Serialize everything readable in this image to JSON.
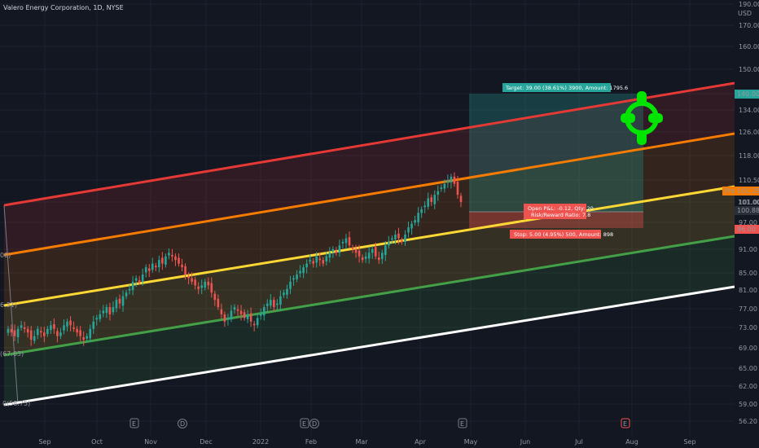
{
  "header": {
    "title": "Valero Energy Corporation, 1D, NYSE"
  },
  "colors": {
    "background": "#131722",
    "up": "#26a69a",
    "down": "#ef5350",
    "channel": [
      "#e53935",
      "#f57c00",
      "#fdd835",
      "#43a047",
      "#ffffff"
    ],
    "target_marker": "#00e400"
  },
  "chart_data": {
    "type": "candlestick",
    "price_scale_unit": "USD",
    "y_ticks": [
      "190.00",
      "170.00",
      "160.00",
      "150.00",
      "140.00",
      "134.00",
      "126.00",
      "118.00",
      "110.50",
      "101.00",
      "97.00",
      "91.00",
      "85.00",
      "81.00",
      "77.00",
      "73.00",
      "69.00",
      "65.00",
      "62.00",
      "59.00",
      "56.20"
    ],
    "x_ticks": [
      "Sep",
      "Oct",
      "Nov",
      "Dec",
      "2022",
      "Feb",
      "Mar",
      "Apr",
      "May",
      "Jun",
      "Jul",
      "Aug",
      "Sep"
    ],
    "channel_labels": [
      {
        "text": "08)"
      },
      {
        "text": "6.31)"
      },
      {
        "text": "(67.63)"
      },
      {
        "text": "0(58.75)"
      }
    ],
    "price_tags": [
      {
        "text": "140.00",
        "role": "target"
      },
      {
        "text": "101.25",
        "role": "pre-market",
        "prefix": "Pre"
      },
      {
        "text": "101.00",
        "role": "level"
      },
      {
        "text": "100.88",
        "role": "last"
      },
      {
        "text": "96.00",
        "role": "stop"
      }
    ],
    "position": {
      "target_label": "Target: 39.00 (38.61%) 3900, Amount: 1795.6",
      "open_label_1": "Open P&L: -0.12, Qty: 20",
      "open_label_2": "Risk/Reward Ratio: 7.8",
      "stop_label": "Stop: 5.00 (4.95%) 500, Amount: 898"
    },
    "event_markers": [
      {
        "text": "E"
      },
      {
        "text": "D"
      },
      {
        "text": "E"
      },
      {
        "text": "D"
      },
      {
        "text": "E"
      },
      {
        "text": "E"
      }
    ],
    "closes_approx": [
      66,
      65,
      64,
      66,
      67,
      66,
      65,
      63,
      64,
      66,
      65,
      64,
      66,
      67,
      66,
      64,
      65,
      67,
      68,
      67,
      66,
      65,
      64,
      63,
      64,
      66,
      68,
      69,
      70,
      71,
      72,
      70,
      72,
      74,
      73,
      75,
      76,
      77,
      79,
      80,
      79,
      81,
      83,
      82,
      84,
      83,
      85,
      84,
      86,
      87,
      86,
      85,
      84,
      83,
      81,
      80,
      79,
      78,
      77,
      78,
      79,
      78,
      76,
      74,
      72,
      70,
      68,
      69,
      71,
      72,
      71,
      70,
      69,
      70,
      68,
      67,
      69,
      70,
      72,
      73,
      74,
      72,
      73,
      75,
      76,
      77,
      79,
      80,
      81,
      82,
      83,
      84,
      85,
      84,
      86,
      85,
      84,
      86,
      87,
      88,
      87,
      89,
      90,
      91,
      89,
      88,
      87,
      86,
      85,
      86,
      87,
      88,
      86,
      85,
      87,
      89,
      90,
      91,
      92,
      91,
      90,
      92,
      94,
      95,
      96,
      98,
      99,
      100,
      102,
      101,
      103,
      104,
      105,
      106,
      107,
      108,
      106,
      103,
      101
    ]
  }
}
